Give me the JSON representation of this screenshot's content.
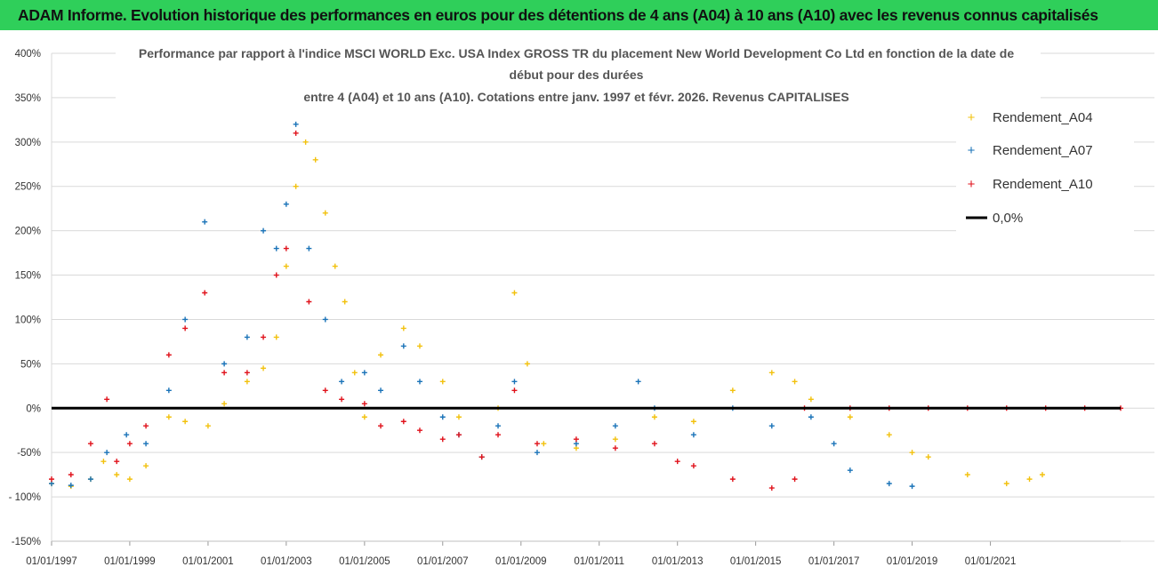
{
  "header": {
    "title": "ADAM Informe. Evolution historique des performances en euros pour des détentions de 4 ans (A04) à 10 ans (A10) avec les revenus connus capitalisés"
  },
  "colors": {
    "banner": "#2fcf5a",
    "a04": "#f2c10d",
    "a07": "#1a73b8",
    "a10": "#e0121b",
    "zero": "#000000",
    "grid": "#d9d9d9"
  },
  "chart_data": {
    "type": "scatter",
    "title": [
      "Performance par rapport à l'indice MSCI WORLD Exc. USA Index GROSS TR  du placement New World Development Co Ltd en fonction de la date de",
      "début pour des durées",
      "entre 4 (A04) et 10 ans (A10). Cotations entre janv. 1997 et févr. 2026. Revenus CAPITALISES"
    ],
    "xlabel": "",
    "ylabel": "",
    "x_range": [
      "1997-01-01",
      "2024-05-01"
    ],
    "x_ticks": [
      "01/01/1997",
      "01/01/1999",
      "01/01/2001",
      "01/01/2003",
      "01/01/2005",
      "01/01/2007",
      "01/01/2009",
      "01/01/2011",
      "01/01/2013",
      "01/01/2015",
      "01/01/2017",
      "01/01/2019",
      "01/01/2021"
    ],
    "y_range": [
      -150,
      400
    ],
    "y_ticks": [
      "400%",
      "350%",
      "300%",
      "250%",
      "200%",
      "150%",
      "100%",
      "50%",
      "0%",
      "-50%",
      "- 100%",
      "-150%"
    ],
    "y_tick_values": [
      400,
      350,
      300,
      250,
      200,
      150,
      100,
      50,
      0,
      -50,
      -100,
      -150
    ],
    "grid": "horizontal",
    "legend_position": "right",
    "legend": [
      "Rendement_A04",
      "Rendement_A07",
      "Rendement_A10",
      "0,0%"
    ],
    "series": [
      {
        "name": "Rendement_A04",
        "color": "#f2c10d",
        "points": [
          [
            "1997-01-01",
            -85
          ],
          [
            "1997-07-01",
            -88
          ],
          [
            "1998-01-01",
            -80
          ],
          [
            "1998-05-01",
            -60
          ],
          [
            "1998-09-01",
            -75
          ],
          [
            "1999-01-01",
            -80
          ],
          [
            "1999-06-01",
            -65
          ],
          [
            "2000-01-01",
            -10
          ],
          [
            "2000-06-01",
            -15
          ],
          [
            "2001-01-01",
            -20
          ],
          [
            "2001-06-01",
            5
          ],
          [
            "2002-01-01",
            30
          ],
          [
            "2002-06-01",
            45
          ],
          [
            "2002-10-01",
            80
          ],
          [
            "2003-01-01",
            160
          ],
          [
            "2003-04-01",
            250
          ],
          [
            "2003-07-01",
            300
          ],
          [
            "2003-10-01",
            280
          ],
          [
            "2004-01-01",
            220
          ],
          [
            "2004-04-01",
            160
          ],
          [
            "2004-07-01",
            120
          ],
          [
            "2004-10-01",
            40
          ],
          [
            "2005-01-01",
            -10
          ],
          [
            "2005-06-01",
            60
          ],
          [
            "2006-01-01",
            90
          ],
          [
            "2006-06-01",
            70
          ],
          [
            "2007-01-01",
            30
          ],
          [
            "2007-06-01",
            -10
          ],
          [
            "2008-01-01",
            -55
          ],
          [
            "2008-06-01",
            0
          ],
          [
            "2008-11-01",
            130
          ],
          [
            "2009-03-01",
            50
          ],
          [
            "2009-08-01",
            -40
          ],
          [
            "2010-06-01",
            -45
          ],
          [
            "2011-06-01",
            -35
          ],
          [
            "2012-06-01",
            -10
          ],
          [
            "2013-06-01",
            -15
          ],
          [
            "2014-06-01",
            20
          ],
          [
            "2015-06-01",
            40
          ],
          [
            "2016-01-01",
            30
          ],
          [
            "2016-06-01",
            10
          ],
          [
            "2017-06-01",
            -10
          ],
          [
            "2018-06-01",
            -30
          ],
          [
            "2019-01-01",
            -50
          ],
          [
            "2019-06-01",
            -55
          ],
          [
            "2020-06-01",
            -75
          ],
          [
            "2021-06-01",
            -85
          ],
          [
            "2022-01-01",
            -80
          ],
          [
            "2022-05-01",
            -75
          ]
        ]
      },
      {
        "name": "Rendement_A07",
        "color": "#1a73b8",
        "points": [
          [
            "1997-01-01",
            -85
          ],
          [
            "1997-07-01",
            -87
          ],
          [
            "1998-01-01",
            -80
          ],
          [
            "1998-06-01",
            -50
          ],
          [
            "1998-12-01",
            -30
          ],
          [
            "1999-06-01",
            -40
          ],
          [
            "2000-01-01",
            20
          ],
          [
            "2000-06-01",
            100
          ],
          [
            "2000-12-01",
            210
          ],
          [
            "2001-06-01",
            50
          ],
          [
            "2002-01-01",
            80
          ],
          [
            "2002-06-01",
            200
          ],
          [
            "2002-10-01",
            180
          ],
          [
            "2003-01-01",
            230
          ],
          [
            "2003-04-01",
            320
          ],
          [
            "2003-08-01",
            180
          ],
          [
            "2004-01-01",
            100
          ],
          [
            "2004-06-01",
            30
          ],
          [
            "2005-01-01",
            40
          ],
          [
            "2005-06-01",
            20
          ],
          [
            "2006-01-01",
            70
          ],
          [
            "2006-06-01",
            30
          ],
          [
            "2007-01-01",
            -10
          ],
          [
            "2007-06-01",
            -30
          ],
          [
            "2008-01-01",
            -55
          ],
          [
            "2008-06-01",
            -20
          ],
          [
            "2008-11-01",
            30
          ],
          [
            "2009-06-01",
            -50
          ],
          [
            "2010-06-01",
            -40
          ],
          [
            "2011-06-01",
            -20
          ],
          [
            "2012-01-01",
            30
          ],
          [
            "2012-06-01",
            0
          ],
          [
            "2013-06-01",
            -30
          ],
          [
            "2014-06-01",
            0
          ],
          [
            "2015-06-01",
            -20
          ],
          [
            "2016-06-01",
            -10
          ],
          [
            "2017-01-01",
            -40
          ],
          [
            "2017-06-01",
            -70
          ],
          [
            "2018-06-01",
            -85
          ],
          [
            "2019-01-01",
            -88
          ]
        ]
      },
      {
        "name": "Rendement_A10",
        "color": "#e0121b",
        "points": [
          [
            "1997-01-01",
            -80
          ],
          [
            "1997-07-01",
            -75
          ],
          [
            "1998-01-01",
            -40
          ],
          [
            "1998-06-01",
            10
          ],
          [
            "1998-09-01",
            -60
          ],
          [
            "1999-01-01",
            -40
          ],
          [
            "1999-06-01",
            -20
          ],
          [
            "2000-01-01",
            60
          ],
          [
            "2000-06-01",
            90
          ],
          [
            "2000-12-01",
            130
          ],
          [
            "2001-06-01",
            40
          ],
          [
            "2002-01-01",
            40
          ],
          [
            "2002-06-01",
            80
          ],
          [
            "2002-10-01",
            150
          ],
          [
            "2003-01-01",
            180
          ],
          [
            "2003-04-01",
            310
          ],
          [
            "2003-08-01",
            120
          ],
          [
            "2004-01-01",
            20
          ],
          [
            "2004-06-01",
            10
          ],
          [
            "2005-01-01",
            5
          ],
          [
            "2005-06-01",
            -20
          ],
          [
            "2006-01-01",
            -15
          ],
          [
            "2006-06-01",
            -25
          ],
          [
            "2007-01-01",
            -35
          ],
          [
            "2007-06-01",
            -30
          ],
          [
            "2008-01-01",
            -55
          ],
          [
            "2008-06-01",
            -30
          ],
          [
            "2008-11-01",
            20
          ],
          [
            "2009-06-01",
            -40
          ],
          [
            "2010-06-01",
            -35
          ],
          [
            "2011-06-01",
            -45
          ],
          [
            "2012-06-01",
            -40
          ],
          [
            "2013-01-01",
            -60
          ],
          [
            "2013-06-01",
            -65
          ],
          [
            "2014-06-01",
            -80
          ],
          [
            "2015-06-01",
            -90
          ],
          [
            "2016-01-01",
            -80
          ],
          [
            "2016-04-01",
            0
          ],
          [
            "2017-06-01",
            0
          ],
          [
            "2018-06-01",
            0
          ],
          [
            "2019-06-01",
            0
          ],
          [
            "2020-06-01",
            0
          ],
          [
            "2021-06-01",
            0
          ],
          [
            "2022-06-01",
            0
          ],
          [
            "2023-06-01",
            0
          ],
          [
            "2024-05-01",
            0
          ]
        ]
      },
      {
        "name": "0,0%",
        "color": "#000000",
        "type": "line",
        "points": [
          [
            "1997-01-01",
            0
          ],
          [
            "2024-05-01",
            0
          ]
        ]
      }
    ]
  }
}
